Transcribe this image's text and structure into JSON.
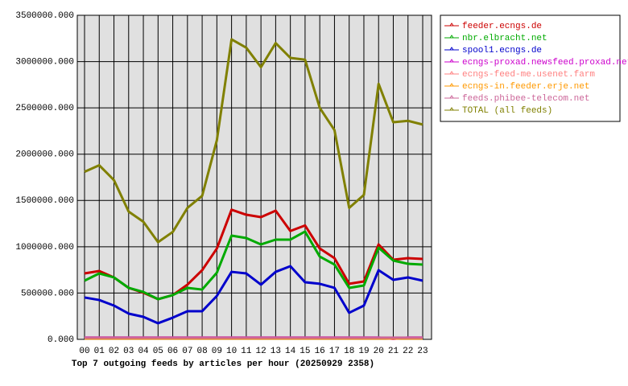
{
  "chart_data": {
    "type": "line",
    "title": "Top 7 outgoing feeds by articles per hour (20250929 2358)",
    "categories": [
      "00",
      "01",
      "02",
      "03",
      "04",
      "05",
      "06",
      "07",
      "08",
      "09",
      "10",
      "11",
      "12",
      "13",
      "14",
      "15",
      "16",
      "17",
      "18",
      "19",
      "20",
      "21",
      "22",
      "23"
    ],
    "ylim": [
      0,
      3500000
    ],
    "yticks": [
      {
        "value": 0,
        "label": "0.000"
      },
      {
        "value": 500000,
        "label": "500000.000"
      },
      {
        "value": 1000000,
        "label": "1000000.000"
      },
      {
        "value": 1500000,
        "label": "1500000.000"
      },
      {
        "value": 2000000,
        "label": "2000000.000"
      },
      {
        "value": 2500000,
        "label": "2500000.000"
      },
      {
        "value": 3000000,
        "label": "3000000.000"
      },
      {
        "value": 3500000,
        "label": "3500000.000"
      }
    ],
    "grid": true,
    "legend": "outside-right",
    "series": [
      {
        "name": "feeder.ecngs.de",
        "color": "#cc0000",
        "values": [
          712000,
          738000,
          669000,
          556000,
          504000,
          434000,
          478000,
          591000,
          747000,
          981000,
          1400000,
          1346000,
          1320000,
          1390000,
          1170000,
          1230000,
          981000,
          877000,
          600000,
          625000,
          1025000,
          860000,
          877000,
          868000
        ]
      },
      {
        "name": "nbr.elbracht.net",
        "color": "#00aa00",
        "values": [
          634000,
          712000,
          669000,
          556000,
          512000,
          434000,
          478000,
          556000,
          538000,
          720000,
          1120000,
          1094000,
          1025000,
          1077000,
          1077000,
          1164000,
          894000,
          808000,
          556000,
          582000,
          990000,
          851000,
          816000,
          808000
        ]
      },
      {
        "name": "spool1.ecngs.de",
        "color": "#0000cc",
        "values": [
          452000,
          425000,
          365000,
          278000,
          243000,
          174000,
          234000,
          304000,
          304000,
          469000,
          729000,
          712000,
          591000,
          729000,
          790000,
          617000,
          600000,
          556000,
          287000,
          365000,
          747000,
          643000,
          669000,
          634000
        ]
      },
      {
        "name": "ecngs-proxad.newsfeed.proxad.net",
        "color": "#cc00cc",
        "values": [
          20000,
          20000,
          20000,
          20000,
          20000,
          20000,
          20000,
          20000,
          20000,
          20000,
          20000,
          20000,
          20000,
          20000,
          20000,
          20000,
          20000,
          20000,
          20000,
          20000,
          20000,
          5000,
          20000,
          20000
        ]
      },
      {
        "name": "ecngs-feed-me.usenet.farm",
        "color": "#ff8080",
        "values": [
          15000,
          15000,
          15000,
          15000,
          15000,
          15000,
          15000,
          15000,
          15000,
          15000,
          15000,
          15000,
          15000,
          15000,
          15000,
          15000,
          15000,
          15000,
          15000,
          15000,
          15000,
          15000,
          15000,
          15000
        ]
      },
      {
        "name": "ecngs-in.feeder.erje.net",
        "color": "#ff9900",
        "values": [
          10000,
          10000,
          10000,
          10000,
          10000,
          10000,
          10000,
          10000,
          10000,
          10000,
          10000,
          10000,
          10000,
          10000,
          10000,
          10000,
          10000,
          10000,
          10000,
          10000,
          10000,
          10000,
          10000,
          10000
        ]
      },
      {
        "name": "feeds.phibee-telecom.net",
        "color": "#cc6699",
        "values": [
          18000,
          18000,
          18000,
          18000,
          18000,
          18000,
          18000,
          18000,
          18000,
          18000,
          18000,
          18000,
          18000,
          18000,
          18000,
          18000,
          18000,
          18000,
          18000,
          18000,
          18000,
          18000,
          18000,
          18000
        ]
      },
      {
        "name": "TOTAL (all feeds)",
        "color": "#808000",
        "values": [
          1810000,
          1880000,
          1720000,
          1380000,
          1270000,
          1050000,
          1160000,
          1420000,
          1550000,
          2150000,
          3240000,
          3150000,
          2940000,
          3200000,
          3040000,
          3020000,
          2500000,
          2260000,
          1420000,
          1560000,
          2760000,
          2345000,
          2360000,
          2320000
        ]
      }
    ]
  }
}
